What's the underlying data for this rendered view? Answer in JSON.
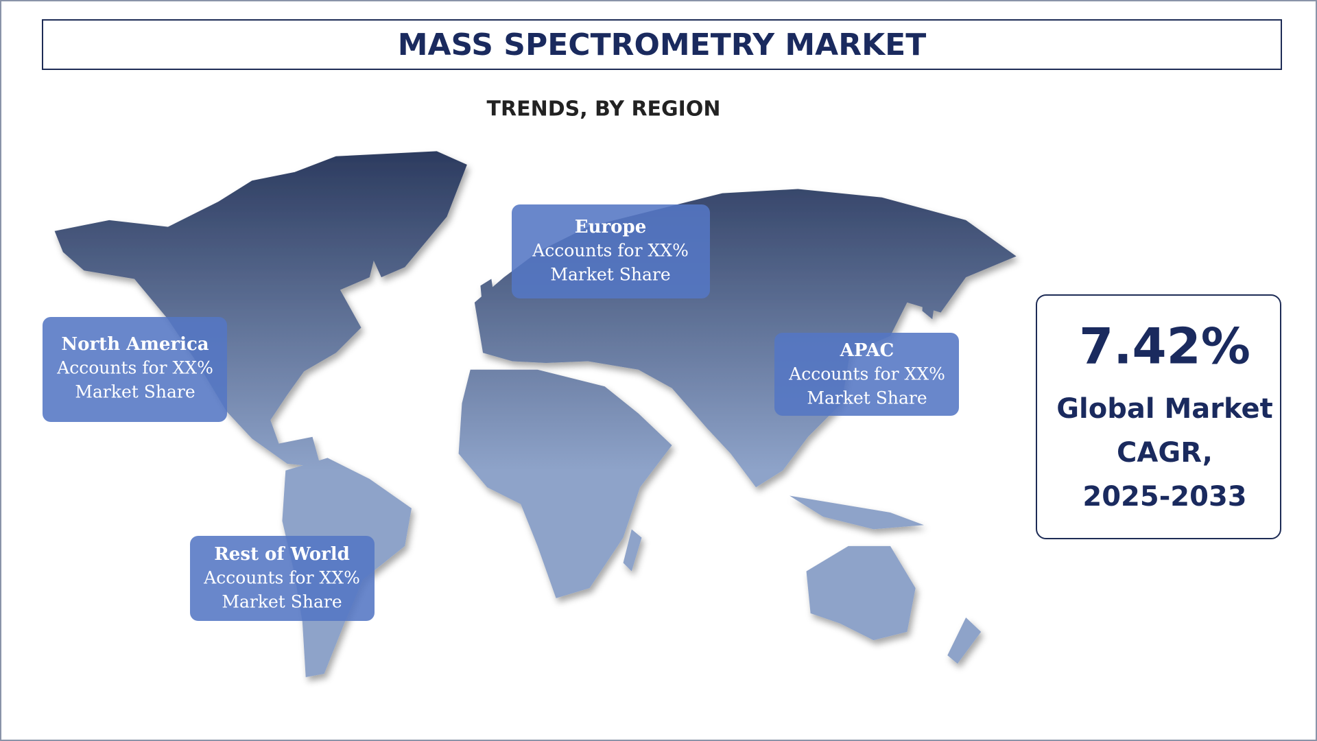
{
  "header": {
    "title": "MASS SPECTROMETRY MARKET",
    "subtitle": "TRENDS, BY REGION"
  },
  "regions": [
    {
      "name": "Europe",
      "lines": [
        "Accounts for XX%",
        "Market Share"
      ]
    },
    {
      "name": "North America",
      "lines": [
        "Accounts for XX%",
        "Market Share"
      ]
    },
    {
      "name": "APAC",
      "lines": [
        "Accounts for XX%",
        "Market Share"
      ]
    },
    {
      "name": "Rest of World",
      "lines": [
        "Accounts for XX%",
        "Market Share"
      ]
    }
  ],
  "cagr": {
    "value": "7.42%",
    "lines": [
      "Global Market",
      "CAGR,",
      "2025-2033"
    ]
  }
}
